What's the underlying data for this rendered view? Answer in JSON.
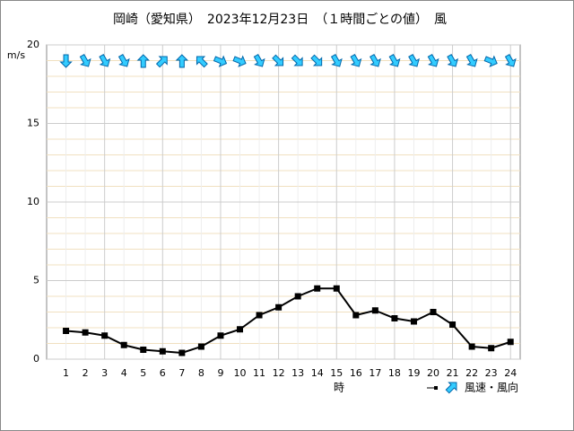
{
  "chart_data": {
    "type": "line",
    "title": "岡崎（愛知県）　2023年12月23日　（１時間ごとの値）　風",
    "y_label": "m/s",
    "x_label": "時",
    "legend": "風速・風向",
    "categories": [
      "1",
      "2",
      "3",
      "4",
      "5",
      "6",
      "7",
      "8",
      "9",
      "10",
      "11",
      "12",
      "13",
      "14",
      "15",
      "16",
      "17",
      "18",
      "19",
      "20",
      "21",
      "22",
      "23",
      "24"
    ],
    "series": [
      {
        "name": "風速",
        "color": "#000000",
        "values": [
          1.8,
          1.7,
          1.5,
          0.9,
          0.6,
          0.5,
          0.4,
          0.8,
          1.5,
          1.9,
          2.8,
          3.3,
          4.0,
          4.5,
          4.5,
          2.8,
          3.1,
          2.6,
          2.4,
          3.0,
          2.2,
          0.8,
          0.7,
          1.1
        ],
        "directions": [
          180,
          150,
          150,
          150,
          0,
          45,
          0,
          315,
          112,
          112,
          150,
          135,
          135,
          135,
          150,
          150,
          150,
          150,
          150,
          150,
          150,
          150,
          112,
          150
        ]
      }
    ],
    "arrow_color": "#33ccff",
    "ylim": [
      0,
      20
    ],
    "yticks": [
      0,
      5,
      10,
      15,
      20
    ],
    "grid": true
  }
}
